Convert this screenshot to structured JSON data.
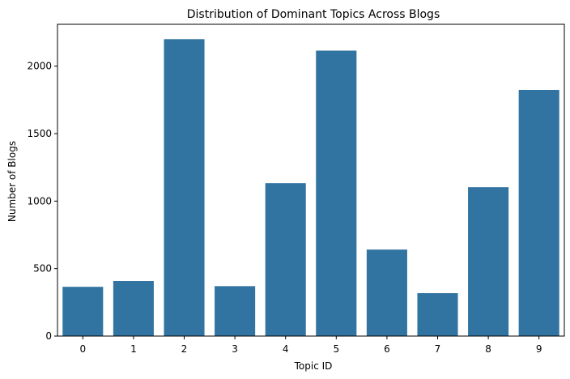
{
  "chart_data": {
    "type": "bar",
    "title": "Distribution of Dominant Topics Across Blogs",
    "xlabel": "Topic ID",
    "ylabel": "Number of Blogs",
    "categories": [
      "0",
      "1",
      "2",
      "3",
      "4",
      "5",
      "6",
      "7",
      "8",
      "9"
    ],
    "values": [
      365,
      408,
      2200,
      370,
      1133,
      2115,
      641,
      318,
      1103,
      1824
    ],
    "ylim": [
      0,
      2310
    ],
    "yticks": [
      0,
      500,
      1000,
      1500,
      2000
    ],
    "bar_color": "#3274a1",
    "grid": false,
    "legend": false
  }
}
